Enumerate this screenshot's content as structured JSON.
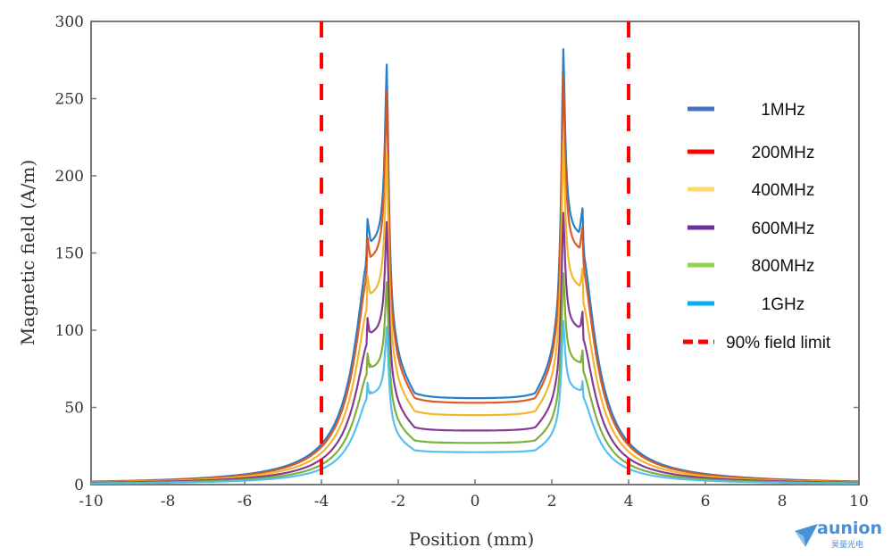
{
  "chart_data": {
    "type": "line",
    "title": "",
    "xlabel": "Position (mm)",
    "ylabel": "Magnetic field (A/m)",
    "xlim": [
      -10,
      10
    ],
    "ylim": [
      0,
      300
    ],
    "xticks": [
      -10,
      -8,
      -6,
      -4,
      -2,
      0,
      2,
      4,
      6,
      8,
      10
    ],
    "yticks": [
      0,
      50,
      100,
      150,
      200,
      250,
      300
    ],
    "grid": false,
    "legend_position": "right",
    "x": [
      -10,
      -8,
      -6,
      -5,
      -4.5,
      -4,
      -3.6,
      -3.3,
      -3.1,
      -2.95,
      -2.85,
      -2.8,
      -2.75,
      -2.7,
      -2.62,
      -2.5,
      -2.4,
      -2.3,
      -2.2,
      -2.05,
      -1.8,
      -1.5,
      -1.2,
      -0.8,
      -0.4,
      0,
      0.4,
      0.8,
      1.2,
      1.5,
      1.8,
      2.05,
      2.2,
      2.3,
      2.4,
      2.5,
      2.62,
      2.7,
      2.75,
      2.8,
      2.85,
      2.95,
      3.1,
      3.3,
      3.6,
      4,
      4.5,
      5,
      6,
      8,
      10
    ],
    "series": [
      {
        "name": "1MHz",
        "color": "#1f77c4",
        "center": 56,
        "peak_left": 272,
        "peak_right": 282,
        "side_left": 172,
        "side_right": 179
      },
      {
        "name": "200MHz",
        "color": "#d95319",
        "center": 53,
        "peak_left": 255,
        "peak_right": 265,
        "side_left": 160,
        "side_right": 167
      },
      {
        "name": "400MHz",
        "color": "#f0b323",
        "center": 45,
        "peak_left": 214,
        "peak_right": 223,
        "side_left": 135,
        "side_right": 140
      },
      {
        "name": "600MHz",
        "color": "#7e2f8e",
        "center": 35,
        "peak_left": 170,
        "peak_right": 176,
        "side_left": 108,
        "side_right": 112
      },
      {
        "name": "800MHz",
        "color": "#77ac30",
        "center": 27,
        "peak_left": 131,
        "peak_right": 137,
        "side_left": 85,
        "side_right": 87
      },
      {
        "name": "1GHz",
        "color": "#4dbeee",
        "center": 21,
        "peak_left": 102,
        "peak_right": 106,
        "side_left": 66,
        "side_right": 67
      }
    ],
    "reference_lines": [
      {
        "name": "90% field limit",
        "x": -4,
        "color": "#ff0000",
        "style": "dashed"
      },
      {
        "name": "90% field limit",
        "x": 4,
        "color": "#ff0000",
        "style": "dashed"
      }
    ],
    "legend": [
      {
        "label": "1MHz",
        "color": "#4472c4",
        "style": "solid"
      },
      {
        "label": "200MHz",
        "color": "#ff0000",
        "style": "solid"
      },
      {
        "label": "400MHz",
        "color": "#ffd966",
        "style": "solid"
      },
      {
        "label": "600MHz",
        "color": "#7030a0",
        "style": "solid"
      },
      {
        "label": "800MHz",
        "color": "#92d050",
        "style": "solid"
      },
      {
        "label": "1GHz",
        "color": "#00b0f0",
        "style": "solid"
      },
      {
        "label": "90% field limit",
        "color": "#ff0000",
        "style": "dashed"
      }
    ]
  },
  "watermark": {
    "brand": "aunion",
    "subtitle": "昊量光电",
    "color": "#4a90d9"
  }
}
